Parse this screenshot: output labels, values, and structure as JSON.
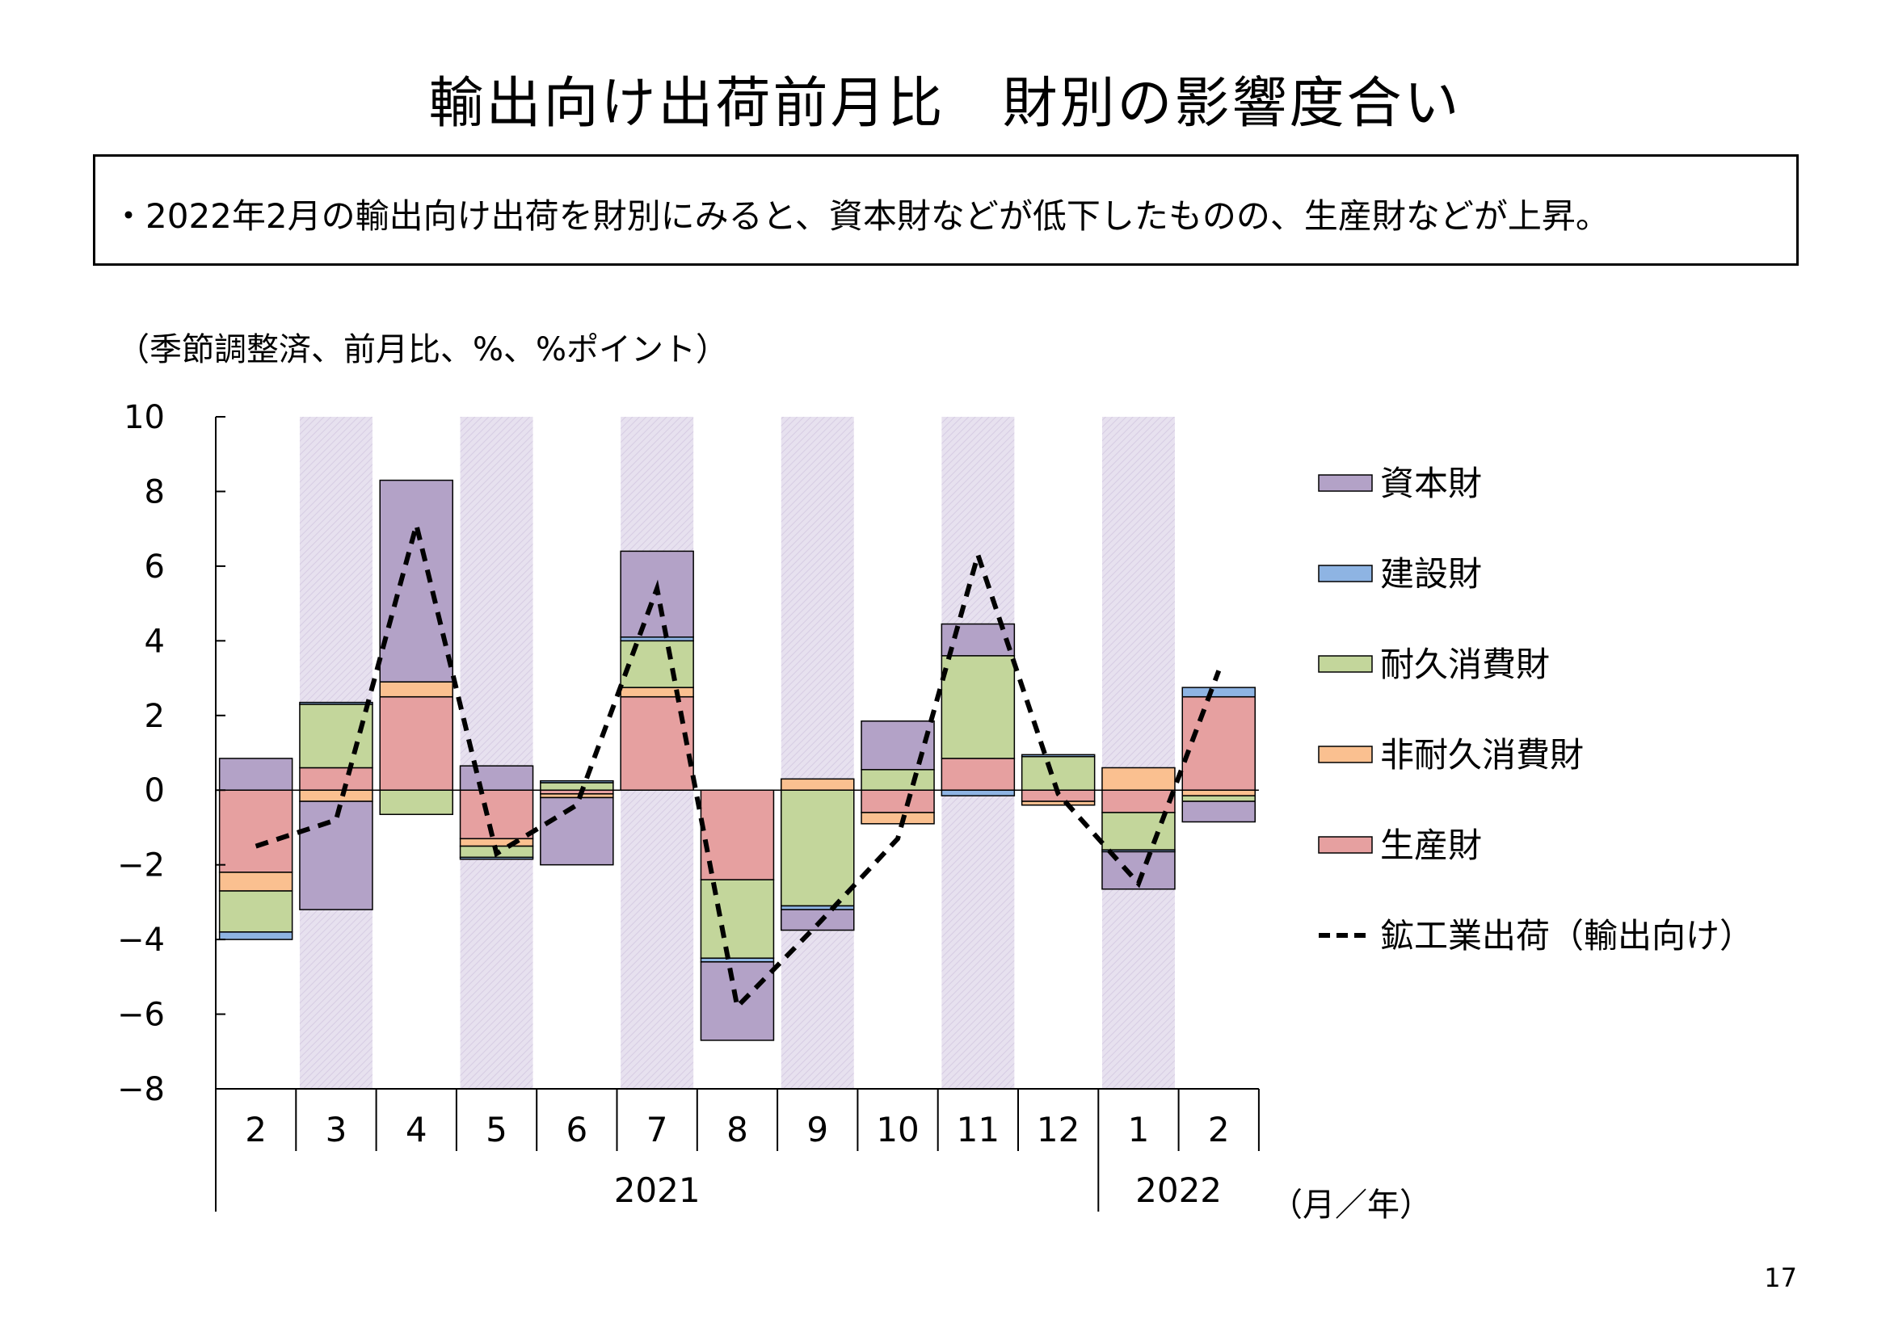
{
  "title": "輸出向け出荷前月比　財別の影響度合い",
  "summary": "・2022年2月の輸出向け出荷を財別にみると、資本財などが低下したものの、生産財などが上昇。",
  "unit_note": "（季節調整済、前月比、%、%ポイント）",
  "x_unit_label": "（月／年）",
  "page_number": "17",
  "chart_data": {
    "type": "bar",
    "stacked": true,
    "months": [
      "2",
      "3",
      "4",
      "5",
      "6",
      "7",
      "8",
      "9",
      "10",
      "11",
      "12",
      "1",
      "2"
    ],
    "years": [
      {
        "label": "2021",
        "start": 0,
        "end": 10
      },
      {
        "label": "2022",
        "start": 11,
        "end": 12
      }
    ],
    "ylim": [
      -8,
      10
    ],
    "yticks": [
      10,
      8,
      6,
      4,
      2,
      0,
      -2,
      -4,
      -6,
      -8
    ],
    "shaded_months": [
      1,
      3,
      5,
      7,
      9,
      11
    ],
    "colors": {
      "capital": "#b3a2c7",
      "construction": "#8eb4e3",
      "durable": "#c3d69b",
      "nondurable": "#fac090",
      "production": "#e6a0a0",
      "shade": "#e4dfec"
    },
    "series": [
      {
        "key": "production",
        "name": "生産財",
        "values": [
          -2.2,
          0.6,
          2.5,
          -1.3,
          -0.1,
          2.5,
          -2.4,
          0.0,
          -0.6,
          0.85,
          -0.3,
          -0.6,
          2.5
        ]
      },
      {
        "key": "nondurable",
        "name": "非耐久消費財",
        "values": [
          -0.5,
          -0.3,
          0.4,
          -0.2,
          -0.1,
          0.25,
          0.0,
          0.3,
          -0.3,
          0.0,
          -0.1,
          0.6,
          -0.15
        ]
      },
      {
        "key": "durable",
        "name": "耐久消費財",
        "values": [
          -1.1,
          1.7,
          -0.65,
          -0.3,
          0.2,
          1.25,
          -2.1,
          -3.1,
          0.55,
          2.75,
          0.9,
          -1.0,
          -0.15
        ]
      },
      {
        "key": "construction",
        "name": "建設財",
        "values": [
          -0.2,
          0.05,
          0.0,
          -0.05,
          0.05,
          0.1,
          -0.1,
          -0.1,
          0.0,
          -0.15,
          0.05,
          -0.05,
          0.25
        ]
      },
      {
        "key": "capital",
        "name": "資本財",
        "values": [
          0.85,
          -2.9,
          5.4,
          0.65,
          -1.8,
          2.3,
          -2.1,
          -0.55,
          1.3,
          0.85,
          0.0,
          -1.0,
          -0.55
        ]
      }
    ],
    "line": {
      "name": "鉱工業出荷（輸出向け）",
      "values": [
        -1.5,
        -0.8,
        7.1,
        -1.7,
        -0.4,
        5.4,
        -5.8,
        -3.6,
        -1.3,
        6.3,
        -0.1,
        -2.5,
        3.2
      ]
    },
    "legend_order": [
      "capital",
      "construction",
      "durable",
      "nondurable",
      "production",
      "line"
    ],
    "legend_position": "right"
  }
}
